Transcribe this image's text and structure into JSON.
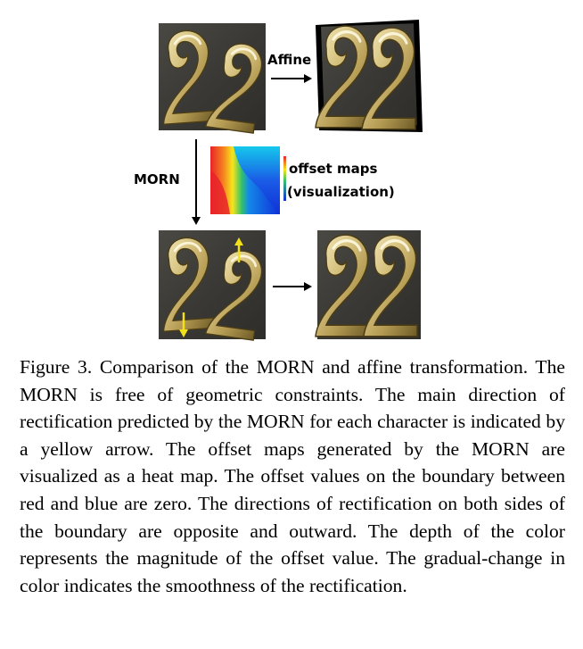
{
  "figure": {
    "label_affine": "Affine",
    "label_morn": "MORN",
    "label_offset_maps_1": "offset maps",
    "label_offset_maps_2": "(visualization)",
    "digit": "2",
    "colors": {
      "plaque": "#3a3a36",
      "brass_light": "#f3e9b8",
      "brass_mid": "#c7b06a",
      "brass_dark": "#6d5a26",
      "arrow_yellow": "#f2e11a",
      "heat_red": "#e8242a",
      "heat_blue": "#1030d8"
    }
  },
  "caption": {
    "text": "Figure 3. Comparison of the MORN and affine transformation. The MORN is free of geometric constraints. The main direction of rectification predicted by the MORN for each character is indicated by a yellow arrow. The offset maps generated by the MORN are visualized as a heat map. The offset values on the boundary between red and blue are zero. The directions of rectification on both sides of the boundary are opposite and outward. The depth of the color represents the magnitude of the offset value. The gradual-change in color indicates the smoothness of the rectification."
  }
}
